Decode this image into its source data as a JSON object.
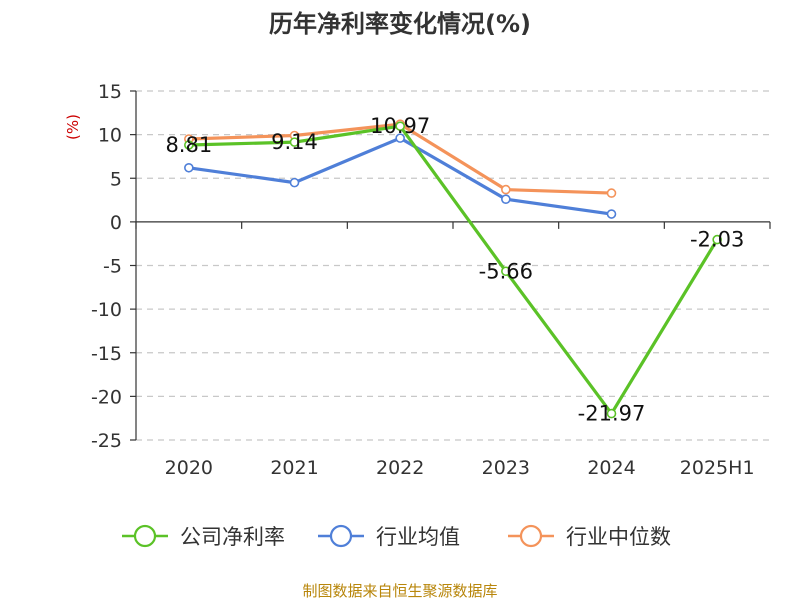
{
  "chart_data": {
    "type": "line",
    "title": "历年净利率变化情况(%)",
    "ylabel": "(%)",
    "categories": [
      "2020",
      "2021",
      "2022",
      "2023",
      "2024",
      "2025H1"
    ],
    "ylim": [
      -25,
      15
    ],
    "yticks": [
      15,
      10,
      5,
      0,
      -5,
      -10,
      -15,
      -20,
      -25
    ],
    "grid": true,
    "legend_position": "bottom",
    "series": [
      {
        "name": "公司净利率",
        "color": "#5bc227",
        "values": [
          8.81,
          9.14,
          10.97,
          -5.66,
          -21.97,
          -2.03
        ],
        "labels": [
          "8.81",
          "9.14",
          "10.97",
          "-5.66",
          "-21.97",
          "-2.03"
        ]
      },
      {
        "name": "行业均值",
        "color": "#4f7fd8",
        "values": [
          6.2,
          4.5,
          9.6,
          2.6,
          0.9,
          null
        ]
      },
      {
        "name": "行业中位数",
        "color": "#f4935a",
        "values": [
          9.5,
          9.9,
          11.2,
          3.7,
          3.3,
          null
        ]
      }
    ]
  },
  "source": "制图数据来自恒生聚源数据库"
}
